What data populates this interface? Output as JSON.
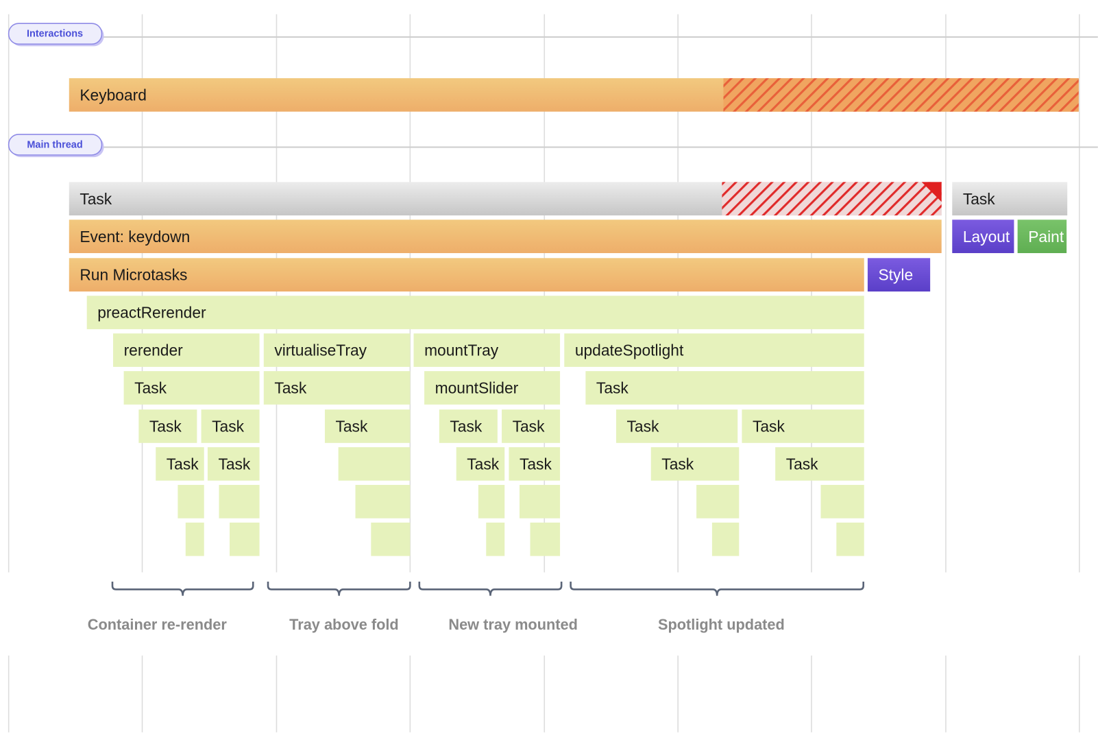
{
  "tracks": [
    "Interactions",
    "Main thread"
  ],
  "blocks": [
    "Keyboard",
    "Task",
    "Task",
    "Event: keydown",
    "Layout",
    "Paint",
    "Run Microtasks",
    "Style",
    "preactRerender",
    "rerender",
    "virtualiseTray",
    "mountTray",
    "updateSpotlight",
    "Task",
    "Task",
    "mountSlider",
    "Task",
    "Task",
    "Task",
    "Task",
    "Task",
    "Task",
    "Task",
    "Task",
    "Task",
    "Task",
    "Task",
    "Task",
    "Task",
    "Task"
  ],
  "annotations": [
    "Container re-render",
    "Tray above fold",
    "New tray mounted",
    "Spotlight updated"
  ]
}
